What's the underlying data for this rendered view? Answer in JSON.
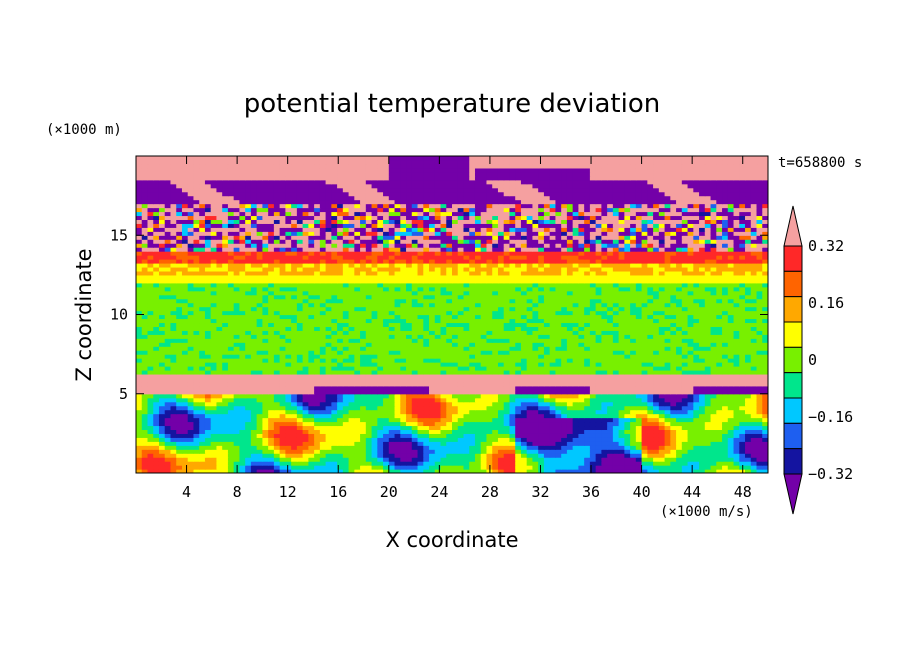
{
  "chart_data": {
    "type": "heatmap",
    "title": "potential temperature deviation",
    "xlabel": "X coordinate",
    "ylabel": "Z coordinate",
    "x_unit": "(×1000 m/s)",
    "y_unit": "(×1000 m)",
    "time_label": "t=658800 s",
    "xlim": [
      0,
      50
    ],
    "ylim": [
      0,
      20
    ],
    "x_ticks": [
      "4",
      "8",
      "12",
      "16",
      "20",
      "24",
      "28",
      "32",
      "36",
      "40",
      "44",
      "48"
    ],
    "x_tick_values": [
      4,
      8,
      12,
      16,
      20,
      24,
      28,
      32,
      36,
      40,
      44,
      48
    ],
    "y_ticks": [
      "5",
      "10",
      "15"
    ],
    "y_tick_values": [
      5,
      10,
      15
    ],
    "colorbar": {
      "labels": [
        "0.32",
        "0.16",
        "0",
        "−0.16",
        "−0.32"
      ],
      "label_values": [
        0.32,
        0.16,
        0,
        -0.16,
        -0.32
      ],
      "levels": [
        -0.4,
        -0.32,
        -0.24,
        -0.16,
        -0.08,
        0,
        0.08,
        0.16,
        0.24,
        0.32,
        0.4
      ],
      "colors": [
        "#7300a8",
        "#1414a0",
        "#1e5ff0",
        "#00c8ff",
        "#00e68c",
        "#78f000",
        "#ffff00",
        "#ffa800",
        "#ff6400",
        "#ff2828",
        "#f5a0a0"
      ],
      "extend": "both"
    },
    "layers": [
      {
        "z_range": [
          18.5,
          20
        ],
        "dominant_value": "above 0.4"
      },
      {
        "z_range": [
          17,
          18.5
        ],
        "dominant_value": "below -0.4"
      },
      {
        "z_range": [
          14,
          17
        ],
        "dominant_value": "mixed, -0.4 to 0.4"
      },
      {
        "z_range": [
          13,
          14
        ],
        "dominant_value": "0.32"
      },
      {
        "z_range": [
          12,
          13
        ],
        "dominant_value": "0.16"
      },
      {
        "z_range": [
          6,
          12
        ],
        "dominant_value": "0"
      },
      {
        "z_range": [
          5,
          6
        ],
        "dominant_value": "above 0.4 / below -0.4"
      },
      {
        "z_range": [
          0,
          5
        ],
        "dominant_value": "mixed, -0.4 to 0.4"
      }
    ]
  }
}
